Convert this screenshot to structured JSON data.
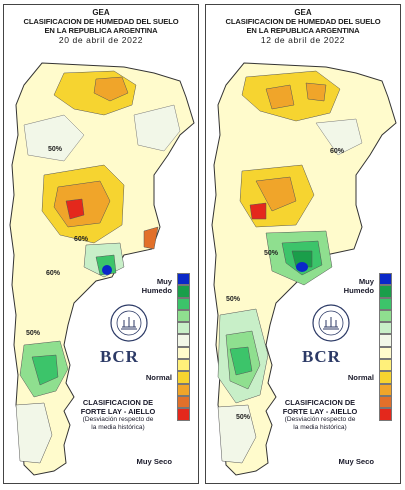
{
  "panels": [
    {
      "org": "GEA",
      "title_line1": "CLASIFICACION DE HUMEDAD DEL SUELO",
      "title_line2": "EN LA REPUBLICA ARGENTINA",
      "date": "20 de abril de 2022",
      "contour_labels": [
        "50%",
        "60%",
        "60%",
        "50%"
      ]
    },
    {
      "org": "GEA",
      "title_line1": "CLASIFICACION DE HUMEDAD DEL SUELO",
      "title_line2": "EN LA REPUBLICA ARGENTINA",
      "date": "12 de abril de 2022",
      "contour_labels": [
        "60%",
        "50%",
        "50%",
        "50%"
      ]
    }
  ],
  "legend": {
    "top_label": "Muy Humedo",
    "mid_label": "Normal",
    "bottom_label": "Muy Seco",
    "colors": [
      "#0a28c8",
      "#1a9e4a",
      "#3cc46a",
      "#8fdf8f",
      "#c8efc8",
      "#f2f7e8",
      "#fffbcc",
      "#fff07a",
      "#f6d430",
      "#f0a52a",
      "#e2702a",
      "#e4281c"
    ]
  },
  "brand": {
    "logo_text": "BCR"
  },
  "credit": {
    "line1": "CLASIFICACION DE",
    "line2": "FORTE LAY - AIELLO",
    "line3": "(Desviación respecto de",
    "line4": "la media histórica)"
  }
}
